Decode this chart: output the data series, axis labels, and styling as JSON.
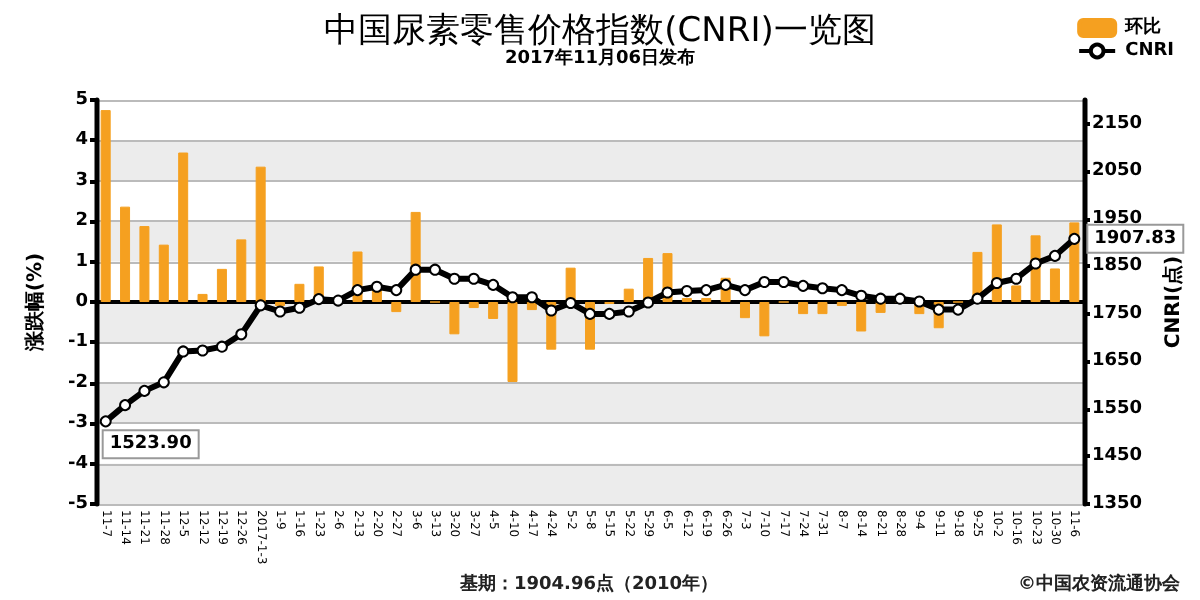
{
  "chart_data": {
    "type": "bar",
    "title": "中国尿素零售价格指数(CNRI)一览图",
    "subtitle": "2017年11月06日发布",
    "ylabel": "涨跌幅(%)",
    "y2label": "CNRI(点)",
    "annotations": [
      "基期：1904.96点（2010年）",
      "©中国农资流通协会"
    ],
    "categories": [
      "11-7",
      "11-14",
      "11-21",
      "11-28",
      "12-5",
      "12-12",
      "12-19",
      "12-26",
      "2017-1-3",
      "1-9",
      "1-16",
      "1-23",
      "2-6",
      "2-13",
      "2-20",
      "2-27",
      "3-6",
      "3-13",
      "3-20",
      "3-27",
      "4-5",
      "4-10",
      "4-17",
      "4-24",
      "5-2",
      "5-8",
      "5-15",
      "5-22",
      "5-29",
      "6-5",
      "6-12",
      "6-19",
      "6-26",
      "7-3",
      "7-10",
      "7-17",
      "7-24",
      "7-31",
      "8-7",
      "8-14",
      "8-21",
      "8-28",
      "9-4",
      "9-11",
      "9-18",
      "9-25",
      "10-2",
      "10-16",
      "10-23",
      "10-30",
      "11-6"
    ],
    "series": [
      {
        "name": "环比",
        "color": "#f5a020",
        "values": [
          4.75,
          2.36,
          1.88,
          1.42,
          3.7,
          0.2,
          0.82,
          1.55,
          3.35,
          -0.1,
          0.45,
          0.88,
          0.05,
          1.25,
          0.3,
          -0.25,
          2.23,
          0,
          -0.8,
          -0.15,
          -0.42,
          -1.98,
          -0.2,
          -1.18,
          0.85,
          -1.18,
          -0.05,
          0.33,
          1.09,
          1.21,
          0.1,
          0.1,
          0.6,
          -0.4,
          -0.85,
          0,
          -0.3,
          -0.3,
          -0.1,
          -0.73,
          -0.27,
          0,
          -0.3,
          -0.65,
          0,
          1.24,
          1.92,
          0.41,
          1.65,
          0.83,
          1.97
        ]
      },
      {
        "name": "CNRI",
        "type": "line",
        "axis": "y2",
        "color": "#000000",
        "marker": "circle",
        "values": [
          1523.9,
          1558,
          1588,
          1606,
          1671,
          1673,
          1681,
          1707,
          1768,
          1755,
          1763,
          1781,
          1778,
          1800,
          1807,
          1800,
          1843,
          1843,
          1824,
          1824,
          1811,
          1785,
          1785,
          1757,
          1773,
          1750,
          1750,
          1755,
          1774,
          1795,
          1798,
          1800,
          1811,
          1800,
          1817,
          1817,
          1809,
          1804,
          1800,
          1788,
          1782,
          1782,
          1776,
          1759,
          1759,
          1782,
          1815,
          1824,
          1856,
          1872,
          1907.83
        ],
        "value_labels": [
          "1523.90",
          null,
          null,
          null,
          null,
          null,
          null,
          null,
          null,
          null,
          null,
          null,
          null,
          null,
          null,
          null,
          null,
          null,
          null,
          null,
          null,
          null,
          null,
          null,
          null,
          null,
          null,
          null,
          null,
          null,
          null,
          null,
          null,
          null,
          null,
          null,
          null,
          null,
          null,
          null,
          null,
          null,
          null,
          null,
          null,
          null,
          null,
          null,
          null,
          null,
          "1907.83"
        ]
      }
    ],
    "ylim": [
      -5,
      5
    ],
    "yticks": [
      -5,
      -4,
      -3,
      -2,
      -1,
      0,
      1,
      2,
      3,
      4,
      5
    ],
    "y2lim": [
      1350,
      2200
    ],
    "y2ticks": [
      1350,
      1450,
      1550,
      1650,
      1750,
      1850,
      1950,
      2050,
      2150
    ],
    "grid": "y",
    "legend": "top right"
  }
}
